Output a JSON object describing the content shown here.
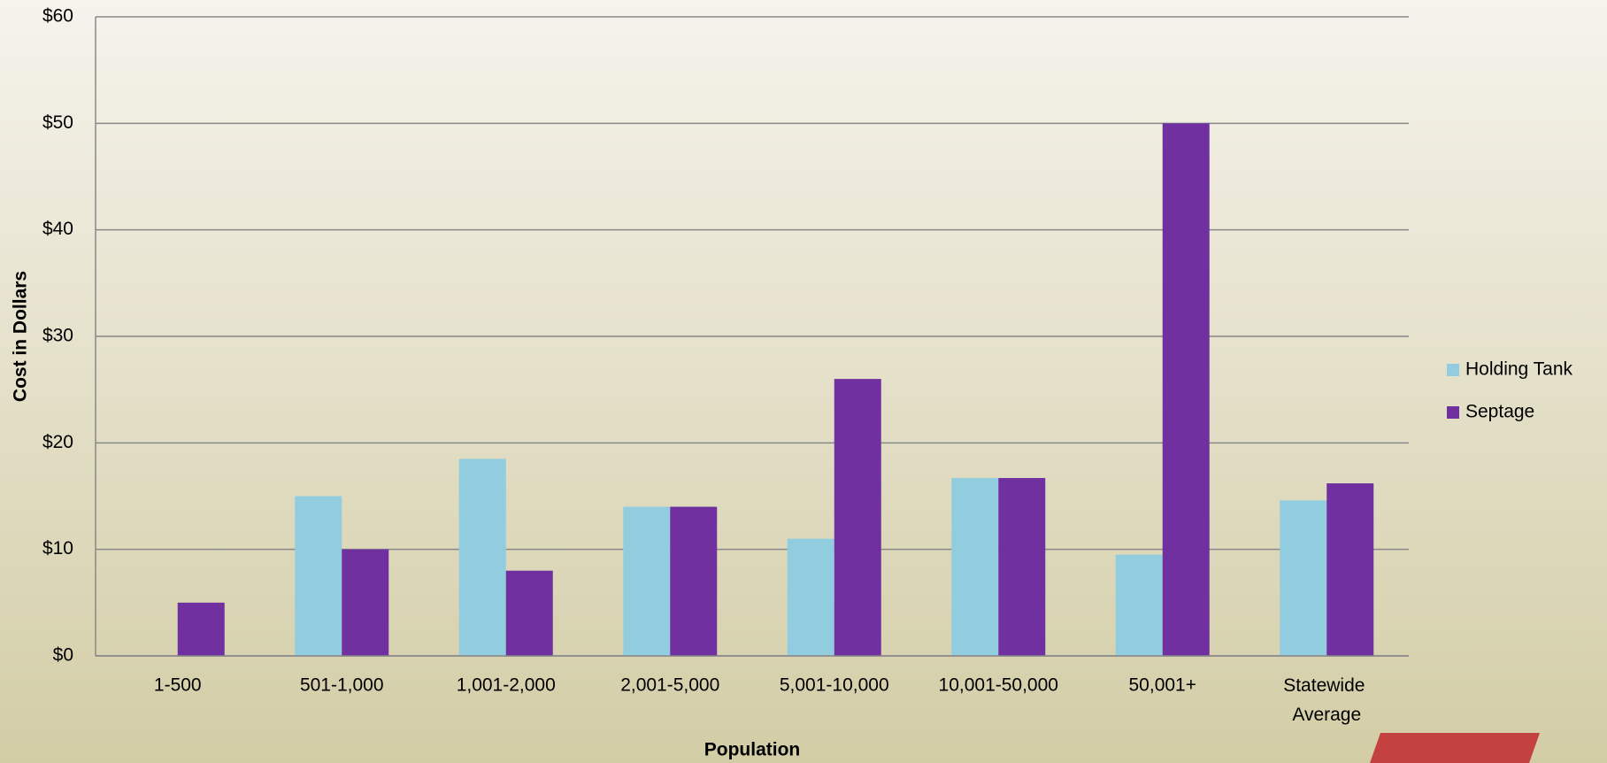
{
  "chart_data": {
    "type": "bar",
    "x_label": "Population",
    "y_label": "Cost in Dollars",
    "categories": [
      "1-500",
      "501-1,000",
      "1,001-2,000",
      "2,001-5,000",
      "5,001-10,000",
      "10,001-50,000",
      "50,001+",
      "Statewide Average"
    ],
    "series": [
      {
        "name": "Holding Tank",
        "color": "#92cddf",
        "values": [
          null,
          15,
          18.5,
          14,
          11,
          16.7,
          9.5,
          14.6
        ]
      },
      {
        "name": "Septage",
        "color": "#7030a0",
        "values": [
          5,
          10,
          8,
          14,
          26,
          16.7,
          50,
          16.2
        ]
      }
    ],
    "ylim": [
      0,
      60
    ],
    "yticks": [
      {
        "value": 0,
        "label": "$0"
      },
      {
        "value": 10,
        "label": "$10"
      },
      {
        "value": 20,
        "label": "$20"
      },
      {
        "value": 30,
        "label": "$30"
      },
      {
        "value": 40,
        "label": "$40"
      },
      {
        "value": 50,
        "label": "$50"
      },
      {
        "value": 60,
        "label": "$60"
      }
    ],
    "grid": true,
    "legend": "right"
  }
}
